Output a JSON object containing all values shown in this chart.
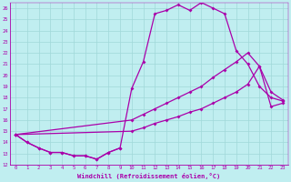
{
  "background_color": "#c0eef0",
  "line_color": "#aa00aa",
  "grid_color": "#a0d8d8",
  "xlim": [
    -0.5,
    23.5
  ],
  "ylim": [
    12,
    26.5
  ],
  "xticks": [
    0,
    1,
    2,
    3,
    4,
    5,
    6,
    7,
    8,
    9,
    10,
    11,
    12,
    13,
    14,
    15,
    16,
    17,
    18,
    19,
    20,
    21,
    22,
    23
  ],
  "yticks": [
    12,
    13,
    14,
    15,
    16,
    17,
    18,
    19,
    20,
    21,
    22,
    23,
    24,
    25,
    26
  ],
  "xlabel": "Windchill (Refroidissement éolien,°C)",
  "series": [
    {
      "x": [
        0,
        1,
        2,
        3,
        4,
        5,
        6,
        7,
        8,
        9
      ],
      "y": [
        14.7,
        14.0,
        13.5,
        13.1,
        13.1,
        12.8,
        12.8,
        12.5,
        13.1,
        13.5
      ]
    },
    {
      "x": [
        0,
        1,
        2,
        3,
        4,
        5,
        6,
        7,
        8,
        9,
        10,
        11,
        12,
        13,
        14,
        15,
        16,
        17,
        18,
        19,
        20,
        21,
        22,
        23
      ],
      "y": [
        14.7,
        14.0,
        13.5,
        13.1,
        13.1,
        12.8,
        12.8,
        12.5,
        13.1,
        13.5,
        18.8,
        21.2,
        25.5,
        25.8,
        26.3,
        25.8,
        26.5,
        26.0,
        25.5,
        22.2,
        21.0,
        19.0,
        18.0,
        17.7
      ]
    },
    {
      "x": [
        0,
        10,
        11,
        12,
        13,
        14,
        15,
        16,
        17,
        18,
        19,
        20,
        21,
        22,
        23
      ],
      "y": [
        14.7,
        16.0,
        16.5,
        17.0,
        17.5,
        18.0,
        18.5,
        19.0,
        19.8,
        20.5,
        21.2,
        22.0,
        20.8,
        18.5,
        17.8
      ]
    },
    {
      "x": [
        0,
        10,
        11,
        12,
        13,
        14,
        15,
        16,
        17,
        18,
        19,
        20,
        21,
        22,
        23
      ],
      "y": [
        14.7,
        15.0,
        15.3,
        15.7,
        16.0,
        16.3,
        16.7,
        17.0,
        17.5,
        18.0,
        18.5,
        19.2,
        20.8,
        17.2,
        17.5
      ]
    }
  ]
}
